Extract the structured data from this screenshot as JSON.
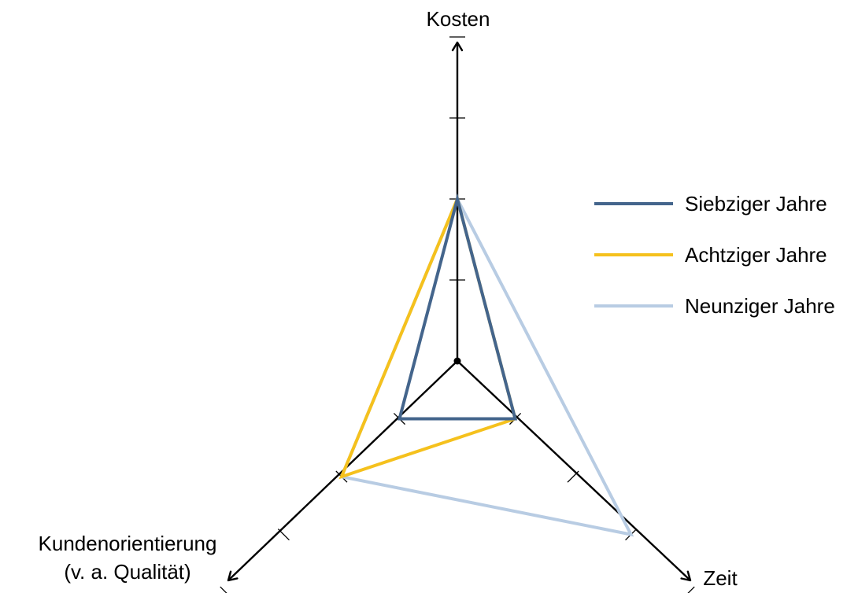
{
  "chart_data": {
    "type": "radar",
    "title": "",
    "axes": [
      {
        "key": "kosten",
        "lines": [
          "Kosten"
        ]
      },
      {
        "key": "zeit",
        "lines": [
          "Zeit"
        ]
      },
      {
        "key": "kundenorientierung",
        "lines": [
          "Kundenorientierung",
          "(v. a. Qualität)"
        ]
      }
    ],
    "scale": {
      "min": 0,
      "max": 4,
      "ticks": [
        1,
        2,
        3,
        4
      ]
    },
    "series": [
      {
        "name": "Siebziger Jahre",
        "color": "#44658c",
        "values": {
          "kosten": 2,
          "zeit": 1,
          "kundenorientierung": 1
        }
      },
      {
        "name": "Achtziger Jahre",
        "color": "#f5c11d",
        "values": {
          "kosten": 2,
          "zeit": 1,
          "kundenorientierung": 2
        }
      },
      {
        "name": "Neunziger Jahre",
        "color": "#b8cce3",
        "values": {
          "kosten": 2,
          "zeit": 3,
          "kundenorientierung": 2
        }
      }
    ],
    "grid": false,
    "legend_position": "right"
  }
}
